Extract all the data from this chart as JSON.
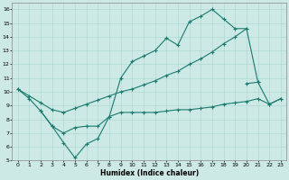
{
  "xlabel": "Humidex (Indice chaleur)",
  "xlim": [
    -0.5,
    23.5
  ],
  "ylim": [
    5,
    16.5
  ],
  "xticks": [
    0,
    1,
    2,
    3,
    4,
    5,
    6,
    7,
    8,
    9,
    10,
    11,
    12,
    13,
    14,
    15,
    16,
    17,
    18,
    19,
    20,
    21,
    22,
    23
  ],
  "yticks": [
    5,
    6,
    7,
    8,
    9,
    10,
    11,
    12,
    13,
    14,
    15,
    16
  ],
  "bg_color": "#cce9e5",
  "line_color": "#1a7a6e",
  "grid_color": "#aad4ce",
  "line1_x": [
    0,
    1,
    2,
    3,
    4,
    5,
    6,
    7,
    8,
    9,
    10,
    11,
    12,
    13,
    14,
    15,
    16,
    17,
    18,
    19,
    20,
    21
  ],
  "line1_y": [
    10.2,
    9.5,
    8.6,
    7.5,
    6.3,
    5.2,
    6.2,
    6.6,
    8.2,
    11.0,
    12.2,
    12.6,
    13.0,
    13.9,
    13.4,
    15.1,
    15.5,
    16.0,
    15.3,
    14.6,
    14.6,
    10.7
  ],
  "line2_x": [
    0,
    1,
    2,
    3,
    4,
    5,
    6,
    7,
    8,
    9,
    10,
    11,
    12,
    13,
    14,
    15,
    16,
    17,
    18,
    19,
    20
  ],
  "line2_y": [
    10.2,
    9.7,
    9.2,
    8.7,
    8.5,
    8.8,
    9.1,
    9.4,
    9.7,
    10.0,
    10.2,
    10.5,
    10.8,
    11.2,
    11.5,
    12.0,
    12.4,
    12.9,
    13.5,
    14.0,
    14.6
  ],
  "line3_x": [
    2,
    3,
    4,
    5,
    6,
    7,
    8,
    9,
    10,
    11,
    12,
    13,
    14,
    15,
    16,
    17,
    18,
    19,
    20,
    21,
    22,
    23
  ],
  "line3_y": [
    8.6,
    7.5,
    7.0,
    7.4,
    7.5,
    7.5,
    8.2,
    8.5,
    8.5,
    8.5,
    8.5,
    8.6,
    8.7,
    8.7,
    8.8,
    8.9,
    9.1,
    9.2,
    9.3,
    9.5,
    9.1,
    9.5
  ],
  "line4_x": [
    20,
    21,
    22,
    23
  ],
  "line4_y": [
    10.6,
    10.7,
    9.1,
    9.5
  ]
}
